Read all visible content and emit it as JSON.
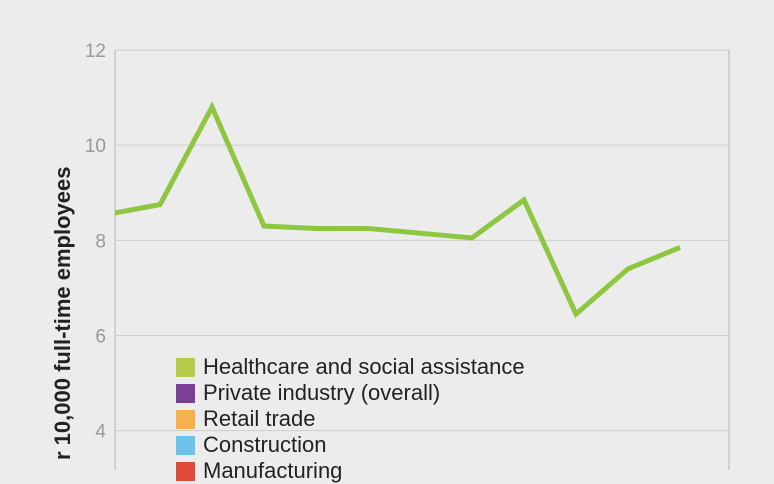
{
  "chart_data": {
    "type": "line",
    "ylabel": "r 10,000 full-time employees",
    "ylim": [
      0,
      12
    ],
    "yticks": [
      4,
      6,
      8,
      10,
      12
    ],
    "grid": true,
    "legend_placement": "bottom-left",
    "legend": [
      {
        "name": "Healthcare and social assistance",
        "color": "#b5cc4a"
      },
      {
        "name": "Private industry (overall)",
        "color": "#7b3f98"
      },
      {
        "name": "Retail trade",
        "color": "#f5b050"
      },
      {
        "name": "Construction",
        "color": "#6ec3ea"
      },
      {
        "name": "Manufacturing",
        "color": "#e04a3a"
      }
    ],
    "series": [
      {
        "name": "Healthcare and social assistance",
        "color": "#8dc63f",
        "values": [
          8.55,
          8.75,
          10.8,
          8.3,
          8.25,
          8.25,
          8.15,
          8.05,
          8.85,
          6.45,
          7.4,
          7.85
        ]
      }
    ]
  }
}
